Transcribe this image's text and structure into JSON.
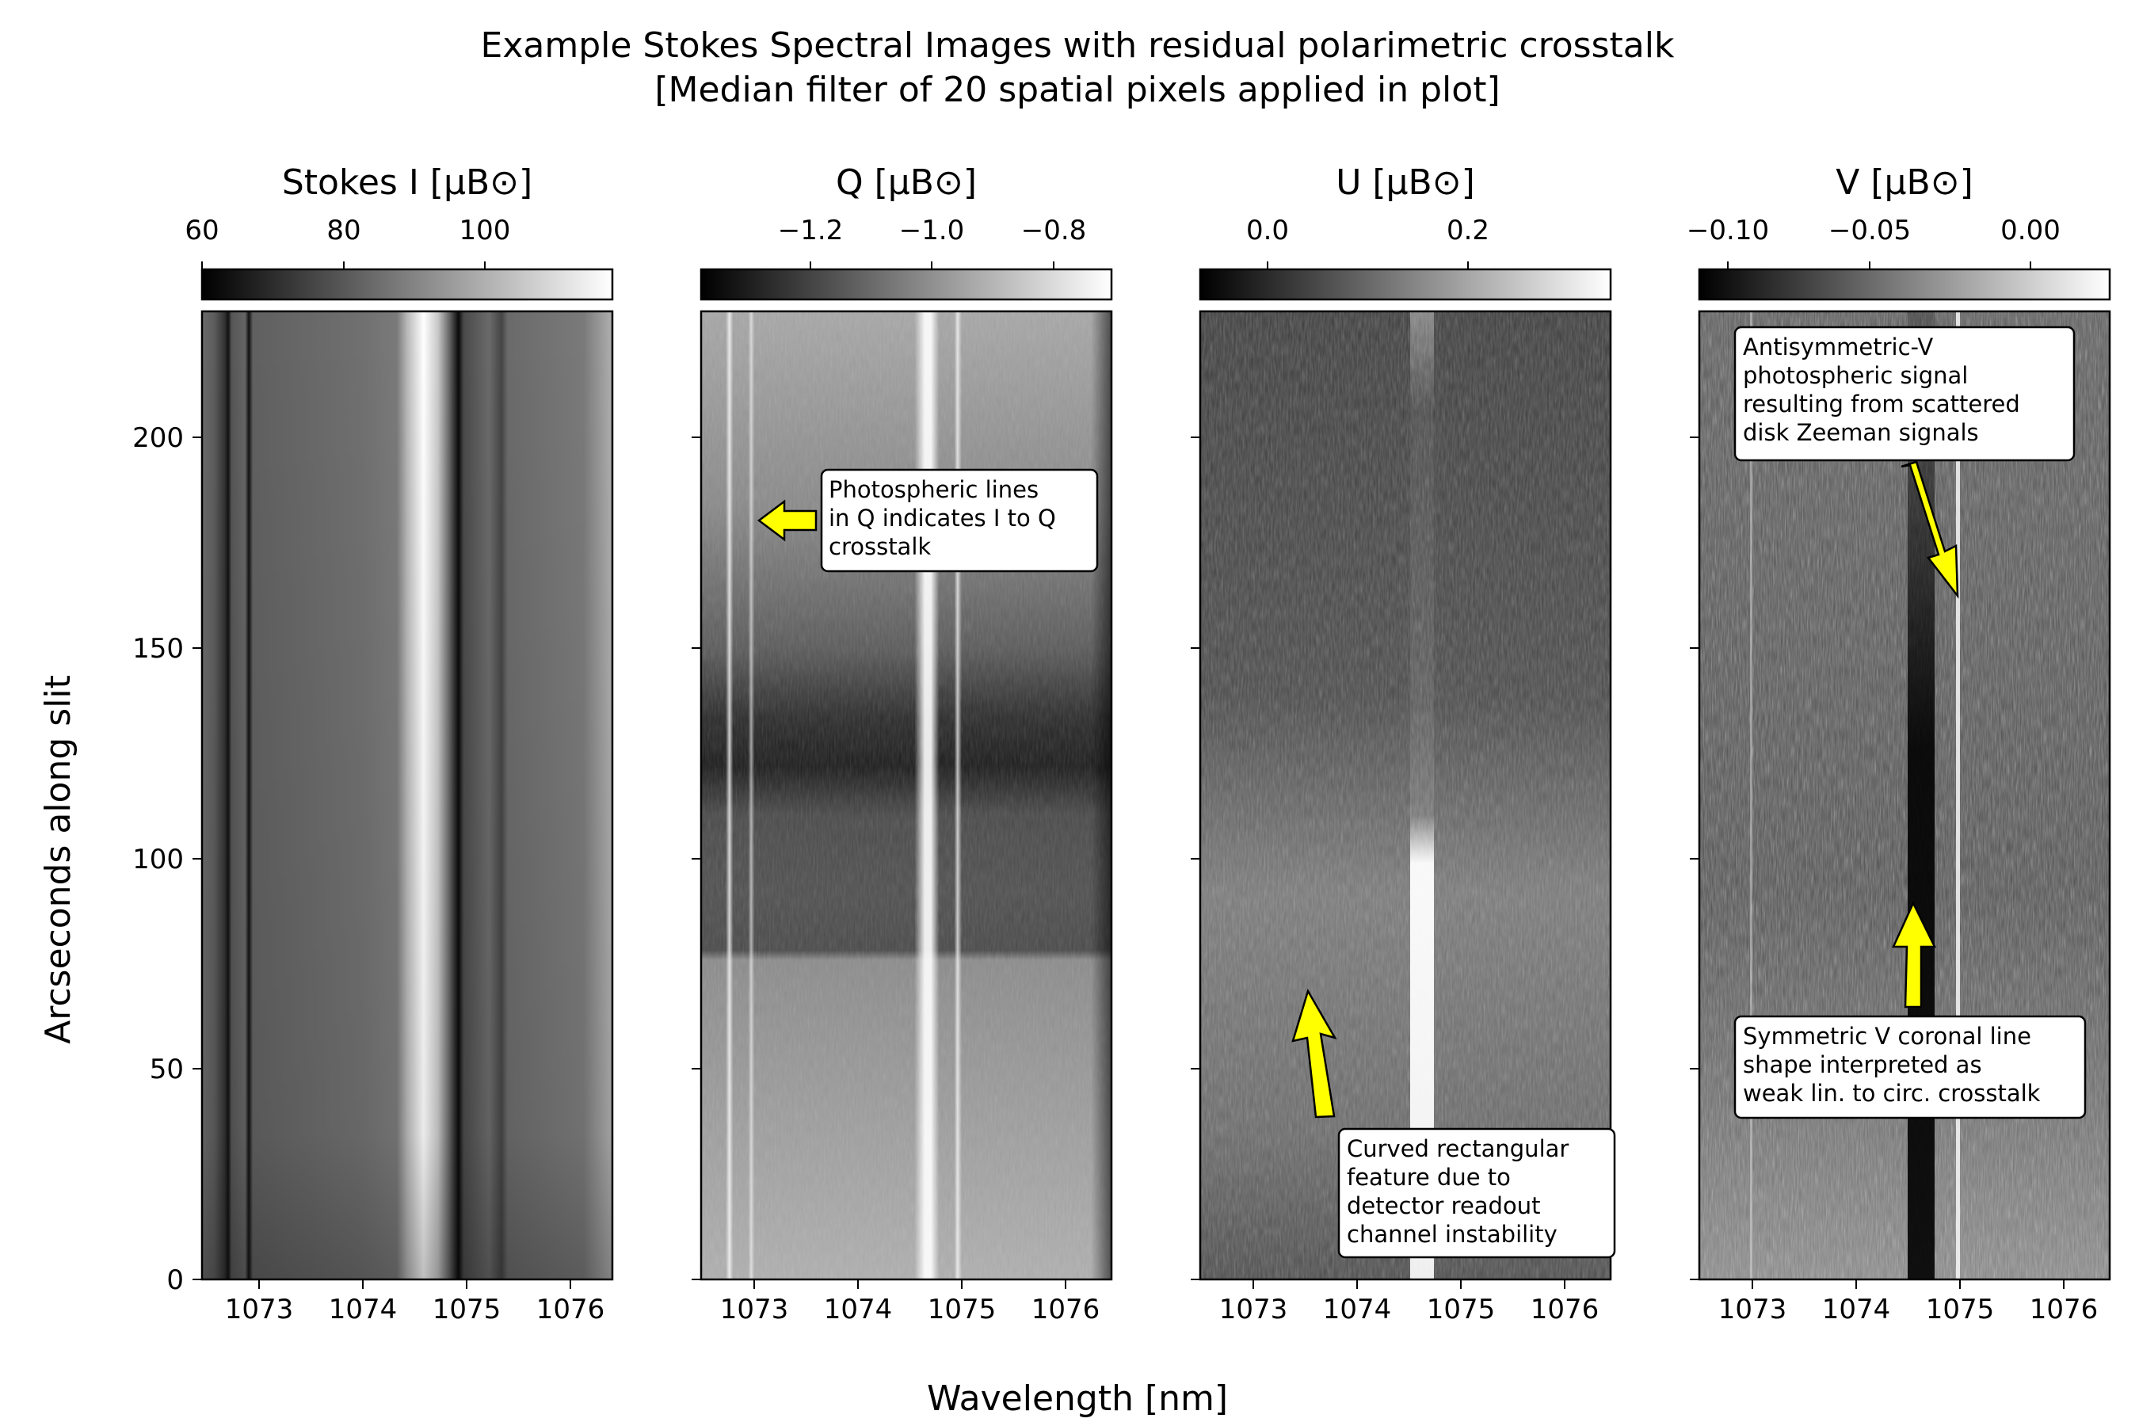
{
  "figure": {
    "title_line1": "Example Stokes Spectral Images with residual polarimetric crosstalk",
    "title_line2": "[Median filter of 20 spatial pixels applied in plot]",
    "xlabel": "Wavelength [nm]",
    "ylabel": "Arcseconds along slit"
  },
  "chart_data": [
    {
      "type": "heatmap",
      "title": "Stokes I [μB⊙]",
      "colormap": "gray",
      "x_range": [
        1072.45,
        1076.4
      ],
      "x_ticks": [
        "1073",
        "1074",
        "1075",
        "1076"
      ],
      "x_tick_values": [
        1073,
        1074,
        1075,
        1076
      ],
      "y_range": [
        0,
        230
      ],
      "y_ticks": [
        "0",
        "50",
        "100",
        "150",
        "200"
      ],
      "y_tick_values": [
        0,
        50,
        100,
        150,
        200
      ],
      "colorbar_range": [
        60,
        118
      ],
      "colorbar_ticks": [
        "60",
        "80",
        "100"
      ],
      "colorbar_tick_values": [
        60,
        80,
        100
      ],
      "features": {
        "bright_line_nm": 1074.62,
        "dark_lines_nm": [
          1072.75,
          1072.95,
          1074.97,
          1075.42
        ]
      }
    },
    {
      "type": "heatmap",
      "title": "Q [μB⊙]",
      "colormap": "gray",
      "x_range": [
        1072.45,
        1076.4
      ],
      "x_ticks": [
        "1073",
        "1074",
        "1075",
        "1076"
      ],
      "x_tick_values": [
        1073,
        1074,
        1075,
        1076
      ],
      "y_range": [
        0,
        230
      ],
      "colorbar_range": [
        -1.35,
        -0.71
      ],
      "colorbar_ticks": [
        "−1.2",
        "−1.0",
        "−0.8"
      ],
      "colorbar_tick_values": [
        -1.2,
        -1.0,
        -0.8
      ],
      "features": {
        "bright_lines_nm": [
          1072.75,
          1072.95,
          1074.62,
          1074.93
        ],
        "dark_band_y": [
          120,
          145
        ]
      },
      "annotation": {
        "text": "Photospheric lines in Q indicates I to Q crosstalk",
        "arrow_to": {
          "x": 1072.5,
          "y": 180
        }
      }
    },
    {
      "type": "heatmap",
      "title": "U [μB⊙]",
      "colormap": "gray",
      "x_range": [
        1072.45,
        1076.4
      ],
      "x_ticks": [
        "1073",
        "1074",
        "1075",
        "1076"
      ],
      "x_tick_values": [
        1073,
        1074,
        1075,
        1076
      ],
      "y_range": [
        0,
        230
      ],
      "colorbar_range": [
        -0.05,
        0.35
      ],
      "colorbar_ticks": [
        "0.0",
        "0.2"
      ],
      "colorbar_tick_values": [
        0.0,
        0.2
      ],
      "features": {
        "bright_line_nm": 1074.65,
        "bright_segment_y": [
          0,
          105
        ]
      },
      "annotation": {
        "text": "Curved rectangular feature due to detector readout channel instability",
        "arrow_to": {
          "x": 1073.5,
          "y": 68
        }
      }
    },
    {
      "type": "heatmap",
      "title": "V [μB⊙]",
      "colormap": "gray",
      "x_range": [
        1072.45,
        1076.4
      ],
      "x_ticks": [
        "1073",
        "1074",
        "1075",
        "1076"
      ],
      "x_tick_values": [
        1073,
        1074,
        1075,
        1076
      ],
      "y_range": [
        0,
        230
      ],
      "colorbar_range": [
        -0.12,
        0.025
      ],
      "colorbar_ticks": [
        "−0.10",
        "−0.05",
        "0.00"
      ],
      "colorbar_tick_values": [
        -0.1,
        -0.05,
        0.0
      ],
      "features": {
        "dark_line_nm": 1074.6,
        "bright_line_nm": 1074.97
      },
      "annotations": [
        {
          "text": "Antisymmetric-V photospheric signal resulting from scattered disk Zeeman signals",
          "arrow_to": {
            "x": 1074.97,
            "y": 162
          }
        },
        {
          "text": "Symmetric V coronal line shape interpreted as weak lin. to circ. crosstalk",
          "arrow_to": {
            "x": 1074.6,
            "y": 88
          }
        }
      ]
    }
  ],
  "colors": {
    "arrow_fill": "#ffff00",
    "annotation_box": "#ffffff",
    "frame": "#000000"
  }
}
